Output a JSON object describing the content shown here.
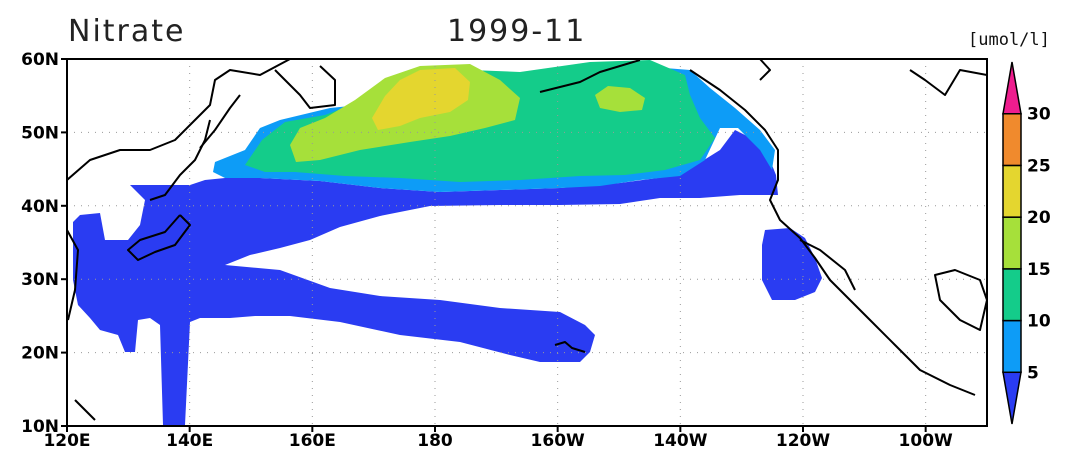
{
  "title_left": "Nitrate",
  "title_center": "1999-11",
  "units_label": "[umol/l]",
  "lat_labels": [
    {
      "text": "60N",
      "lat": 60
    },
    {
      "text": "50N",
      "lat": 50
    },
    {
      "text": "40N",
      "lat": 40
    },
    {
      "text": "30N",
      "lat": 30
    },
    {
      "text": "20N",
      "lat": 20
    },
    {
      "text": "10N",
      "lat": 10
    }
  ],
  "lon_labels": [
    {
      "text": "120E",
      "lon": 120
    },
    {
      "text": "140E",
      "lon": 140
    },
    {
      "text": "160E",
      "lon": 160
    },
    {
      "text": "180",
      "lon": 180
    },
    {
      "text": "160W",
      "lon": 200
    },
    {
      "text": "140W",
      "lon": 220
    },
    {
      "text": "120W",
      "lon": 240
    },
    {
      "text": "100W",
      "lon": 260
    }
  ],
  "colorbar": {
    "labels": [
      "5",
      "10",
      "15",
      "20",
      "25",
      "30"
    ],
    "colors": [
      "#2a3cf2",
      "#0d9cf7",
      "#14cc8a",
      "#a6e03a",
      "#e4d62f",
      "#f08a2d",
      "#ee1d8e"
    ]
  }
}
